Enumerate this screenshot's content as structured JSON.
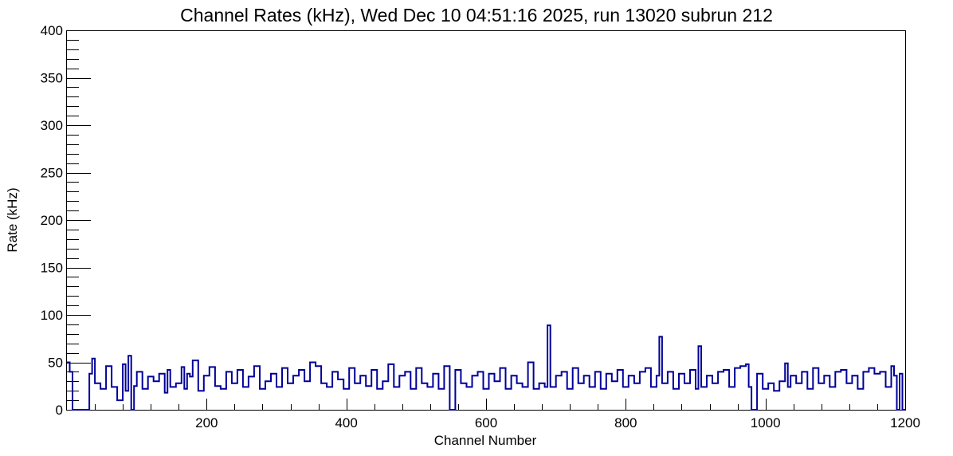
{
  "chart_data": {
    "type": "line",
    "title": "Channel Rates (kHz), Wed Dec 10 04:51:16 2025, run 13020 subrun 212",
    "xlabel": "Channel Number",
    "ylabel": "Rate (kHz)",
    "xlim": [
      0,
      1200
    ],
    "ylim": [
      0,
      400
    ],
    "x_ticks": [
      200,
      400,
      600,
      800,
      1000,
      1200
    ],
    "x_tick_labels": [
      "200",
      "400",
      "600",
      "800",
      "1000",
      "1200"
    ],
    "y_ticks": [
      0,
      50,
      100,
      150,
      200,
      250,
      300,
      350,
      400
    ],
    "y_tick_labels": [
      "0",
      "50",
      "100",
      "150",
      "200",
      "250",
      "300",
      "350",
      "400"
    ],
    "grid": false,
    "legend": "none",
    "line_color": "#000099",
    "series": [
      {
        "x": [
          0,
          4,
          8,
          32,
          36,
          40,
          48,
          56,
          64,
          72,
          80,
          84,
          88,
          92,
          96,
          100,
          108,
          116,
          124,
          132,
          140,
          144,
          148,
          156,
          164,
          168,
          172,
          176,
          180,
          188,
          196,
          204,
          212,
          220,
          228,
          236,
          244,
          252,
          260,
          268,
          276,
          284,
          292,
          300,
          308,
          316,
          324,
          332,
          340,
          348,
          356,
          364,
          372,
          380,
          388,
          396,
          404,
          412,
          420,
          428,
          436,
          444,
          452,
          460,
          468,
          476,
          484,
          492,
          500,
          508,
          516,
          524,
          532,
          540,
          548,
          556,
          564,
          572,
          580,
          588,
          596,
          604,
          612,
          620,
          628,
          636,
          644,
          652,
          660,
          668,
          676,
          684,
          688,
          692,
          700,
          708,
          716,
          724,
          732,
          740,
          748,
          756,
          764,
          772,
          780,
          788,
          796,
          804,
          812,
          820,
          828,
          836,
          844,
          848,
          852,
          860,
          868,
          876,
          884,
          892,
          900,
          904,
          908,
          916,
          924,
          932,
          940,
          948,
          956,
          964,
          972,
          976,
          980,
          988,
          996,
          1004,
          1012,
          1020,
          1028,
          1032,
          1036,
          1044,
          1052,
          1060,
          1068,
          1076,
          1084,
          1092,
          1100,
          1108,
          1116,
          1124,
          1132,
          1140,
          1148,
          1156,
          1164,
          1172,
          1180,
          1184,
          1188,
          1192,
          1196
        ],
        "y": [
          50,
          40,
          0,
          38,
          54,
          28,
          22,
          46,
          24,
          10,
          48,
          20,
          57,
          0,
          25,
          40,
          22,
          35,
          30,
          38,
          18,
          42,
          24,
          28,
          45,
          22,
          38,
          35,
          52,
          20,
          36,
          45,
          25,
          22,
          40,
          28,
          42,
          24,
          35,
          46,
          22,
          30,
          38,
          24,
          44,
          28,
          36,
          42,
          30,
          50,
          46,
          28,
          24,
          40,
          32,
          22,
          44,
          28,
          36,
          25,
          42,
          22,
          30,
          48,
          24,
          36,
          40,
          22,
          44,
          28,
          24,
          38,
          22,
          46,
          0,
          42,
          28,
          24,
          36,
          40,
          22,
          38,
          30,
          44,
          22,
          36,
          28,
          24,
          50,
          22,
          28,
          24,
          89,
          24,
          36,
          40,
          22,
          44,
          28,
          36,
          24,
          40,
          22,
          38,
          30,
          42,
          24,
          36,
          28,
          40,
          44,
          24,
          36,
          77,
          28,
          40,
          22,
          38,
          28,
          42,
          22,
          67,
          24,
          36,
          28,
          40,
          42,
          24,
          44,
          46,
          48,
          24,
          0,
          38,
          22,
          28,
          20,
          30,
          49,
          24,
          36,
          28,
          40,
          22,
          44,
          28,
          36,
          24,
          40,
          42,
          28,
          36,
          22,
          40,
          44,
          38,
          40,
          24,
          46,
          36,
          0,
          38,
          0
        ]
      }
    ]
  }
}
